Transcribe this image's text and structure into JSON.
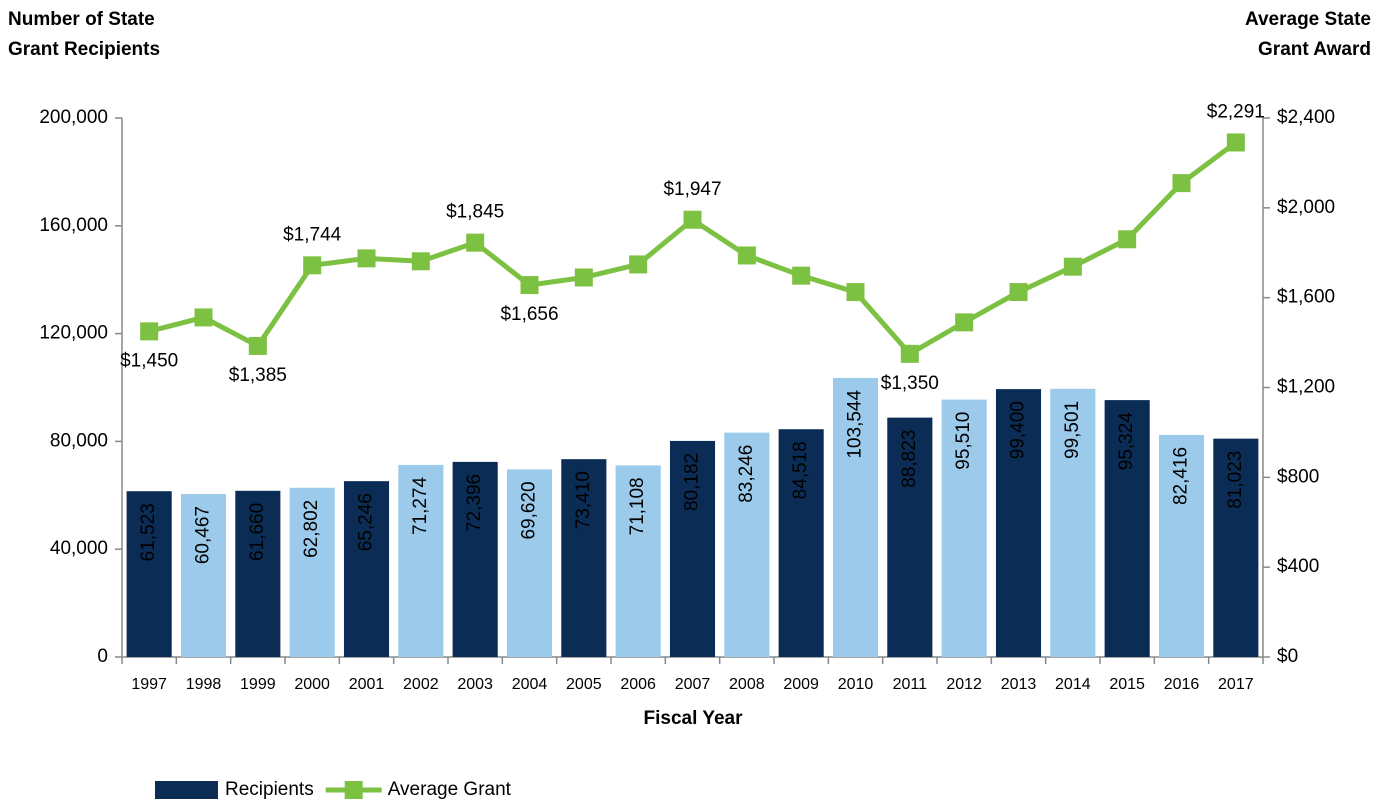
{
  "chart_data": {
    "type": "bar_line",
    "y_label": "Number of State Grant Recipients",
    "y2_label": "Average State Grant Award",
    "x_label": "Fiscal Year",
    "categories": [
      "1997",
      "1998",
      "1999",
      "2000",
      "2001",
      "2002",
      "2003",
      "2004",
      "2005",
      "2006",
      "2007",
      "2008",
      "2009",
      "2010",
      "2011",
      "2012",
      "2013",
      "2014",
      "2015",
      "2016",
      "2017"
    ],
    "series": [
      {
        "name": "Recipients",
        "type": "bar",
        "color": "#0b2d55",
        "colors": [
          "#0b2d55",
          "#9ccaea",
          "#0b2d55",
          "#9ccaea",
          "#0b2d55",
          "#9ccaea",
          "#0b2d55",
          "#9ccaea",
          "#0b2d55",
          "#9ccaea",
          "#0b2d55",
          "#9ccaea",
          "#0b2d55",
          "#9ccaea",
          "#0b2d55",
          "#9ccaea",
          "#0b2d55",
          "#9ccaea",
          "#0b2d55",
          "#9ccaea",
          "#0b2d55"
        ],
        "values": [
          61523,
          60467,
          61660,
          62802,
          65246,
          71274,
          72396,
          69620,
          73410,
          71108,
          80182,
          83246,
          84518,
          103544,
          88823,
          95510,
          99400,
          99501,
          95324,
          82416,
          81023
        ],
        "value_labels": [
          "61,523",
          "60,467",
          "61,660",
          "62,802",
          "65,246",
          "71,274",
          "72,396",
          "69,620",
          "73,410",
          "71,108",
          "80,182",
          "83,246",
          "84,518",
          "103,544",
          "88,823",
          "95,510",
          "99,400",
          "99,501",
          "95,324",
          "82,416",
          "81,023"
        ]
      },
      {
        "name": "Average Grant",
        "type": "line",
        "axis": "y2",
        "color": "#7dc142",
        "values": [
          1450,
          1512,
          1385,
          1744,
          1775,
          1762,
          1845,
          1656,
          1690,
          1748,
          1947,
          1788,
          1698,
          1625,
          1350,
          1490,
          1625,
          1738,
          1860,
          2110,
          2291
        ],
        "value_labels": [
          "$1,450",
          null,
          "$1,385",
          "$1,744",
          null,
          null,
          "$1,845",
          "$1,656",
          null,
          null,
          "$1,947",
          null,
          null,
          null,
          "$1,350",
          null,
          null,
          null,
          null,
          null,
          "$2,291"
        ]
      }
    ],
    "ylim": [
      0,
      200000
    ],
    "yticks": [
      0,
      {
        "value": 40000,
        "label": "40,000"
      },
      {
        "value": 80000,
        "label": "80,000"
      },
      {
        "value": 120000,
        "label": "120,000"
      },
      {
        "value": 160000,
        "label": "160,000"
      },
      {
        "value": 200000,
        "label": "200,000"
      }
    ],
    "y2lim": [
      0,
      2400
    ],
    "y2ticks": [
      {
        "value": 0,
        "label": "$0"
      },
      {
        "value": 400,
        "label": "$400"
      },
      {
        "value": 800,
        "label": "$800"
      },
      {
        "value": 1200,
        "label": "$1,200"
      },
      {
        "value": 1600,
        "label": "$1,600"
      },
      {
        "value": 2000,
        "label": "$2,000"
      },
      {
        "value": 2400,
        "label": "$2,400"
      }
    ],
    "grid": false,
    "legend": "bottom-left"
  }
}
